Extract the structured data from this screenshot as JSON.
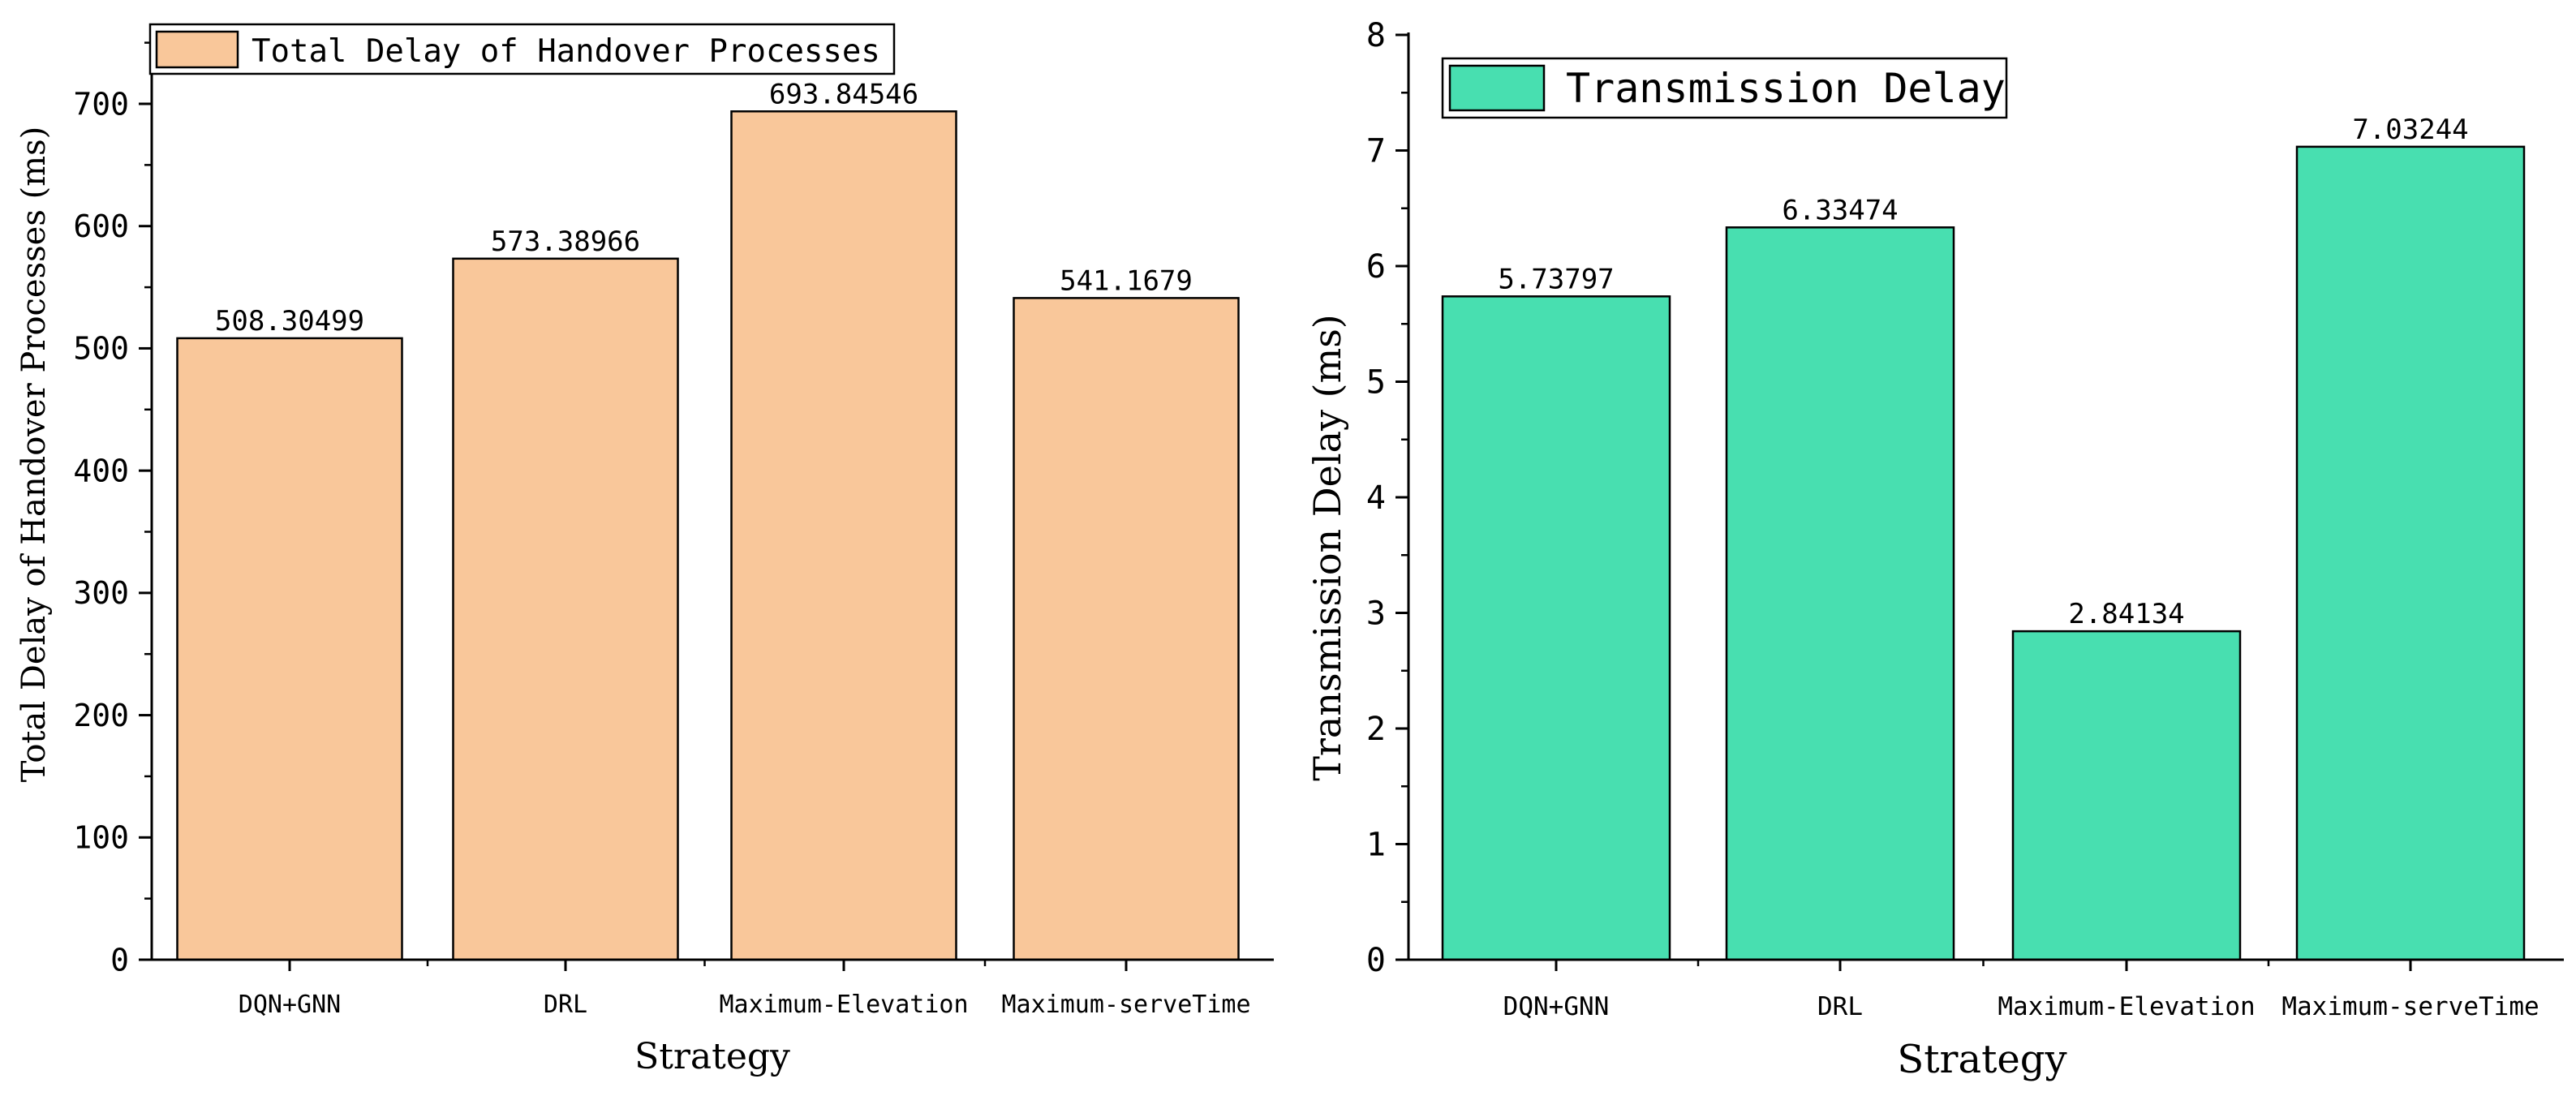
{
  "chart_data": [
    {
      "type": "bar",
      "categories": [
        "DQN+GNN",
        "DRL",
        "Maximum-Elevation",
        "Maximum-serveTime"
      ],
      "values": [
        508.30499,
        573.38966,
        693.84546,
        541.1679
      ],
      "value_labels": [
        "508.30499",
        "573.38966",
        "693.84546",
        "541.1679"
      ],
      "xlabel": "Strategy",
      "ylabel": "Total Delay of Handover Processes (ms)",
      "ylim": [
        0,
        760
      ],
      "yticks": [
        0,
        100,
        200,
        300,
        400,
        500,
        600,
        700
      ],
      "legend": "Total Delay of Handover Processes",
      "legend_position": "top-left",
      "color": "#F9C79A"
    },
    {
      "type": "bar",
      "categories": [
        "DQN+GNN",
        "DRL",
        "Maximum-Elevation",
        "Maximum-serveTime"
      ],
      "values": [
        5.73797,
        6.33474,
        2.84134,
        7.03244
      ],
      "value_labels": [
        "5.73797",
        "6.33474",
        "2.84134",
        "7.03244"
      ],
      "xlabel": "Strategy",
      "ylabel": "Transmission Delay (ms)",
      "ylim": [
        0,
        8
      ],
      "yticks": [
        0,
        1,
        2,
        3,
        4,
        5,
        6,
        7,
        8
      ],
      "legend": "Transmission Delay",
      "legend_position": "top-left",
      "color": "#48DFB0"
    }
  ]
}
